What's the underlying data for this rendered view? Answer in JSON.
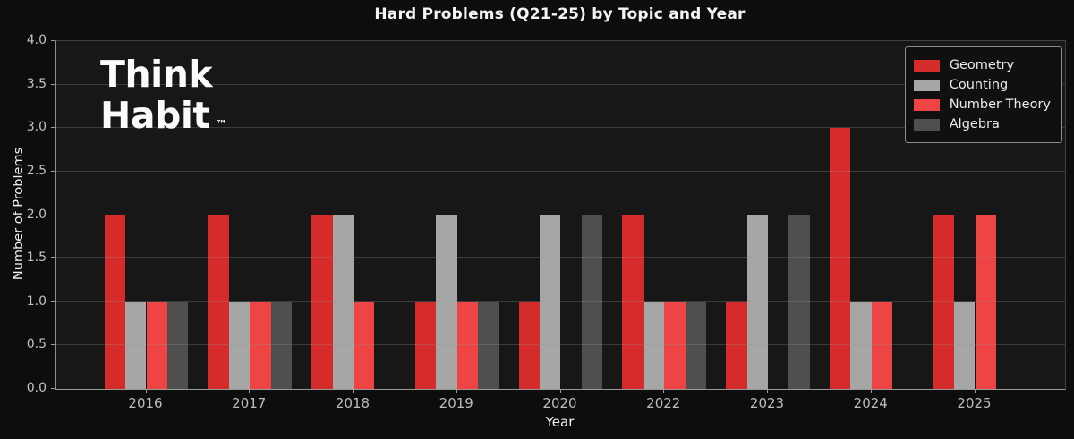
{
  "title": "Hard Problems (Q21-25) by Topic and Year",
  "logo": {
    "line1": "Think",
    "line2": "Habit",
    "trademark": "™"
  },
  "axes": {
    "xlabel": "Year",
    "ylabel": "Number of Problems",
    "y_tick_labels": [
      "0.0",
      "0.5",
      "1.0",
      "1.5",
      "2.0",
      "2.5",
      "3.0",
      "3.5",
      "4.0"
    ],
    "x_tick_labels": [
      "2016",
      "2017",
      "2018",
      "2019",
      "2020",
      "2022",
      "2023",
      "2024",
      "2025"
    ]
  },
  "chart_data": {
    "type": "bar",
    "title": "Hard Problems (Q21-25) by Topic and Year",
    "xlabel": "Year",
    "ylabel": "Number of Problems",
    "categories": [
      "2016",
      "2017",
      "2018",
      "2019",
      "2020",
      "2022",
      "2023",
      "2024",
      "2025"
    ],
    "series": [
      {
        "name": "Geometry",
        "color": "#d62b2b",
        "values": [
          2,
          2,
          2,
          1,
          1,
          2,
          1,
          3,
          2
        ]
      },
      {
        "name": "Counting",
        "color": "#a6a6a6",
        "values": [
          1,
          1,
          2,
          2,
          2,
          1,
          2,
          1,
          1
        ]
      },
      {
        "name": "Number Theory",
        "color": "#ee4444",
        "values": [
          1,
          1,
          1,
          1,
          0,
          1,
          0,
          1,
          2
        ]
      },
      {
        "name": "Algebra",
        "color": "#4f4f4f",
        "values": [
          1,
          1,
          0,
          1,
          2,
          1,
          2,
          0,
          0
        ]
      }
    ],
    "ylim": [
      0,
      4
    ],
    "y_tick_step": 0.5,
    "grid": "horizontal every 0.5, semi-transparent, drawn over bars",
    "legend_position": "upper right"
  },
  "colors": {
    "figure_bg": "#0d0d0d",
    "plot_bg": "#171717",
    "grid_line": "rgba(150,150,150,0.28)",
    "tick_label": "#c2c2c2",
    "text": "#f5f5f5",
    "spine_bright": "#9a9a9a",
    "spine_dim": "#414141",
    "legend_border": "#8c8c8c",
    "legend_bg": "#101010"
  }
}
